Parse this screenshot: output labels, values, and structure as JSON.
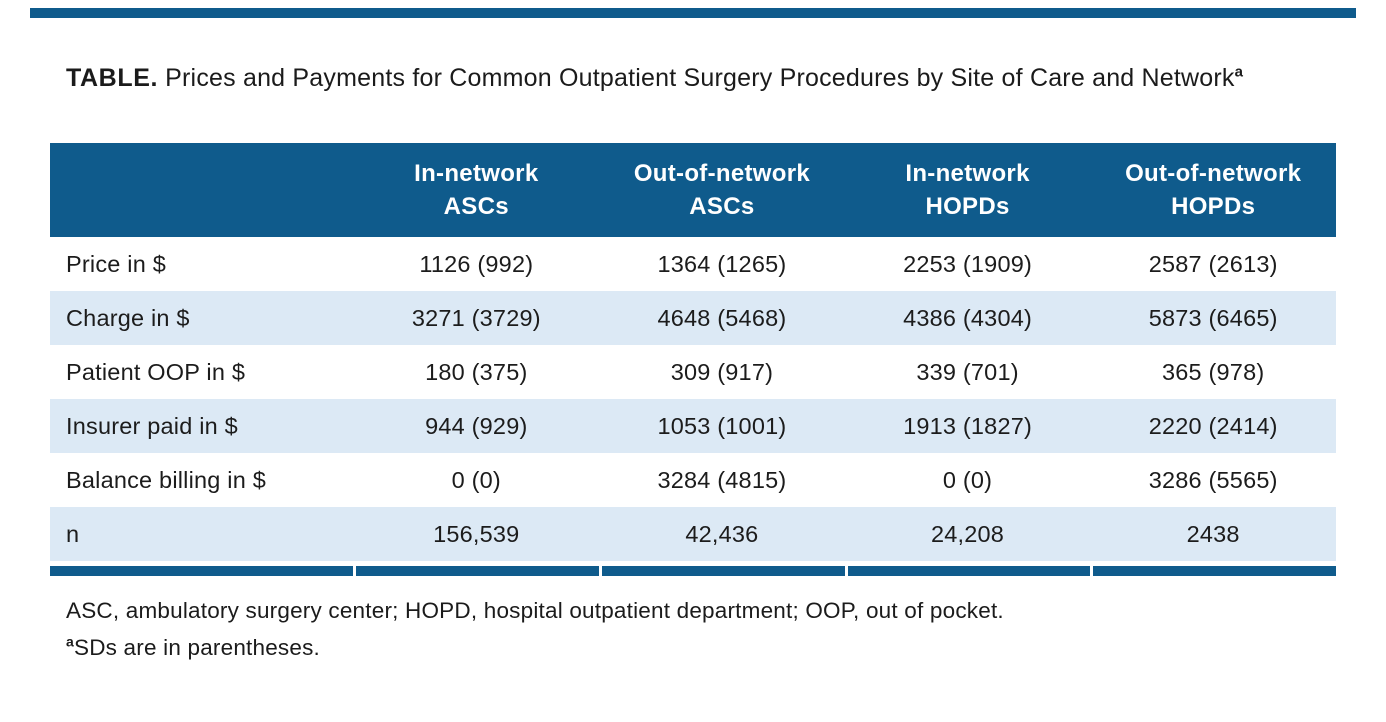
{
  "colors": {
    "header_blue": "#0f5b8c",
    "rule_blue": "#0f5b8c",
    "row_light_blue": "#dce9f5"
  },
  "title": {
    "label": "TABLE.",
    "text": " Prices and Payments for Common Outpatient Surgery Procedures by Site of Care and Network",
    "footnote_marker": "a"
  },
  "table": {
    "columns": [
      "In-network\nASCs",
      "Out-of-network\nASCs",
      "In-network\nHOPDs",
      "Out-of-network\nHOPDs"
    ],
    "rows": [
      {
        "label": "Price in $",
        "values": [
          "1126 (992)",
          "1364 (1265)",
          "2253 (1909)",
          "2587 (2613)"
        ]
      },
      {
        "label": "Charge in $",
        "values": [
          "3271 (3729)",
          "4648 (5468)",
          "4386 (4304)",
          "5873 (6465)"
        ]
      },
      {
        "label": "Patient OOP in $",
        "values": [
          "180 (375)",
          "309 (917)",
          "339 (701)",
          "365 (978)"
        ]
      },
      {
        "label": "Insurer paid in $",
        "values": [
          "944 (929)",
          "1053 (1001)",
          "1913 (1827)",
          "2220 (2414)"
        ]
      },
      {
        "label": "Balance billing in $",
        "values": [
          "0 (0)",
          "3284 (4815)",
          "0 (0)",
          "3286 (5565)"
        ]
      },
      {
        "label": "n",
        "values": [
          "156,539",
          "42,436",
          "24,208",
          "2438"
        ]
      }
    ]
  },
  "footnotes": {
    "abbreviations": "ASC, ambulatory surgery center; HOPD, hospital outpatient department; OOP, out of pocket.",
    "note_marker": "a",
    "note_text": "SDs are in parentheses."
  }
}
